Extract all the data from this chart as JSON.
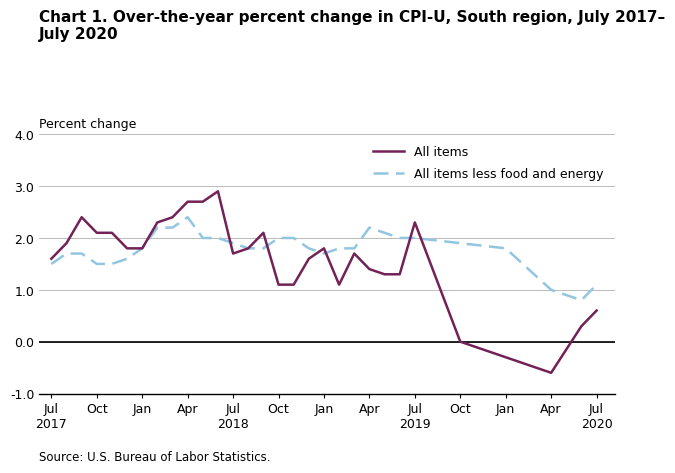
{
  "title_line1": "Chart 1. Over-the-year percent change in CPI-U, South region, July 2017–",
  "title_line2": "July 2020",
  "ylabel": "Percent change",
  "source": "Source: U.S. Bureau of Labor Statistics.",
  "ylim": [
    -1.0,
    4.0
  ],
  "yticks": [
    -1.0,
    0.0,
    1.0,
    2.0,
    3.0,
    4.0
  ],
  "x_tick_labels": [
    "Jul\n2017",
    "Oct",
    "Jan",
    "Apr",
    "Jul\n2018",
    "Oct",
    "Jan",
    "Apr",
    "Jul\n2019",
    "Oct",
    "Jan",
    "Apr",
    "Jul\n2020"
  ],
  "x_tick_positions": [
    0,
    3,
    6,
    9,
    12,
    15,
    18,
    21,
    24,
    27,
    30,
    33,
    36
  ],
  "all_items": [
    1.6,
    1.9,
    2.4,
    2.1,
    2.1,
    1.8,
    1.8,
    2.3,
    2.4,
    2.7,
    2.7,
    2.9,
    1.7,
    1.8,
    2.1,
    1.1,
    1.1,
    1.6,
    1.8,
    1.1,
    1.7,
    1.4,
    1.3,
    1.3,
    2.3,
    0.0,
    -0.3,
    -0.6,
    0.3,
    0.6
  ],
  "all_items_x": [
    0,
    1,
    2,
    3,
    4,
    5,
    6,
    7,
    8,
    9,
    10,
    11,
    12,
    13,
    14,
    15,
    16,
    17,
    18,
    19,
    20,
    21,
    22,
    23,
    24,
    27,
    30,
    33,
    35,
    36
  ],
  "all_items_less": [
    1.5,
    1.7,
    1.7,
    1.5,
    1.5,
    1.6,
    1.8,
    2.2,
    2.2,
    2.4,
    2.0,
    2.0,
    1.9,
    1.8,
    1.8,
    2.0,
    2.0,
    1.8,
    1.7,
    1.8,
    1.8,
    2.2,
    2.1,
    2.0,
    2.0,
    1.9,
    1.8,
    1.0,
    0.8,
    1.1
  ],
  "all_items_less_x": [
    0,
    1,
    2,
    3,
    4,
    5,
    6,
    7,
    8,
    9,
    10,
    11,
    12,
    13,
    14,
    15,
    16,
    17,
    18,
    19,
    20,
    21,
    22,
    23,
    24,
    27,
    30,
    33,
    35,
    36
  ],
  "all_items_color": "#722257",
  "all_items_less_color": "#92C5E0",
  "line_width": 1.8,
  "background_color": "#ffffff",
  "grid_color": "#b0b0b0",
  "title_fontsize": 11,
  "label_fontsize": 9,
  "tick_fontsize": 9,
  "legend_fontsize": 9
}
